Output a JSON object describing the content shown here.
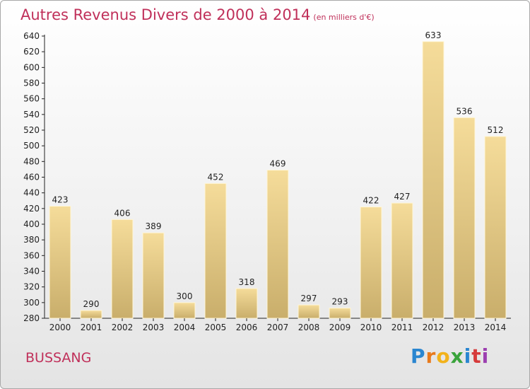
{
  "header": {
    "title": "Autres Revenus Divers de 2000 à 2014",
    "subtitle": "(en milliers d'€)"
  },
  "footer": {
    "location": "BUSSANG",
    "logo_text": "Proxiti"
  },
  "colors": {
    "title": "#c0305a",
    "bar_light": "#f5dc9a",
    "bar_dark": "#c9ae6b"
  },
  "chart_data": {
    "type": "bar",
    "title": "Autres Revenus Divers de 2000 à 2014",
    "subtitle": "(en milliers d'€)",
    "xlabel": "",
    "ylabel": "",
    "categories": [
      "2000",
      "2001",
      "2002",
      "2003",
      "2004",
      "2005",
      "2006",
      "2007",
      "2008",
      "2009",
      "2010",
      "2011",
      "2012",
      "2013",
      "2014"
    ],
    "values": [
      423,
      290,
      406,
      389,
      300,
      452,
      318,
      469,
      297,
      293,
      422,
      427,
      633,
      536,
      512
    ],
    "ylim": [
      280,
      640
    ],
    "yticks": [
      280,
      300,
      320,
      340,
      360,
      380,
      400,
      420,
      440,
      460,
      480,
      500,
      520,
      540,
      560,
      580,
      600,
      620,
      640
    ],
    "grid": false,
    "legend": "none"
  }
}
